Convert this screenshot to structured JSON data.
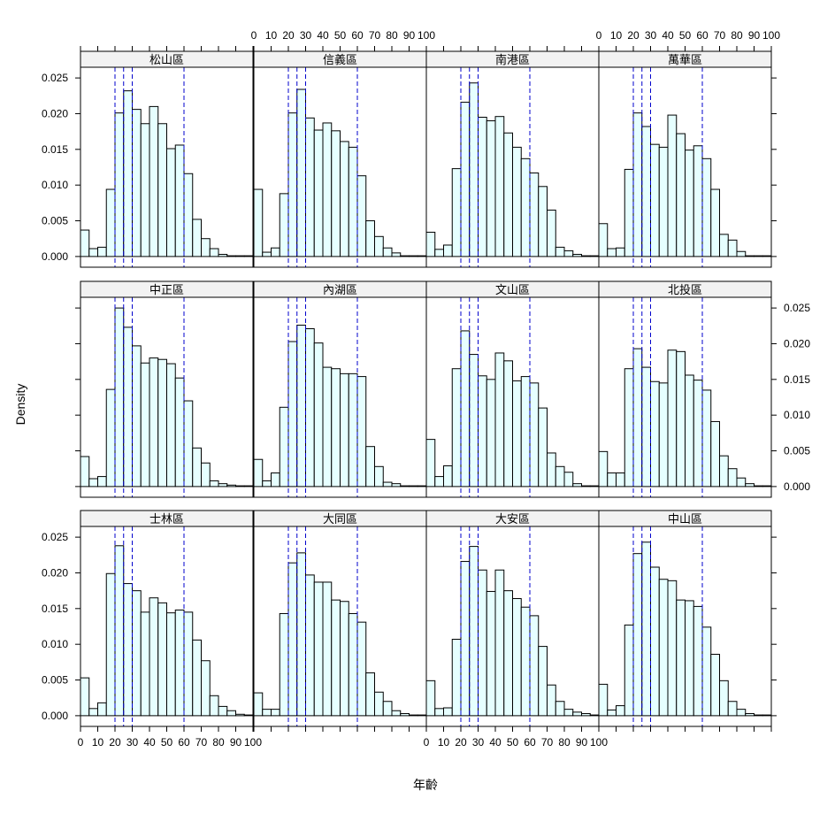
{
  "chart_data": {
    "type": "bar",
    "chart_kind": "lattice histogram",
    "xlabel": "年齡",
    "ylabel": "Density",
    "xlim": [
      0,
      100
    ],
    "ylim": [
      -0.0015,
      0.0265
    ],
    "bin_width": 5,
    "bin_starts": [
      0,
      5,
      10,
      15,
      20,
      25,
      30,
      35,
      40,
      45,
      50,
      55,
      60,
      65,
      70,
      75,
      80,
      85,
      90,
      95
    ],
    "x_ticks": [
      0,
      10,
      20,
      30,
      40,
      50,
      60,
      70,
      80,
      90,
      100
    ],
    "x_tick_labels": [
      "0",
      "10",
      "20",
      "30",
      "40",
      "50",
      "60",
      "70",
      "80",
      "90",
      "100"
    ],
    "y_ticks": [
      0,
      0.005,
      0.01,
      0.015,
      0.02,
      0.025
    ],
    "y_tick_labels": [
      "0.000",
      "0.005",
      "0.010",
      "0.015",
      "0.020",
      "0.025"
    ],
    "reference_lines": [
      20,
      25,
      30,
      60
    ],
    "bar_fill": "#e6ffff",
    "reference_line_color": "#0000cc",
    "strip_fill": "#f2f2f2",
    "panels": [
      {
        "name": "松山區",
        "values": [
          0.0037,
          0.0011,
          0.0013,
          0.0094,
          0.0201,
          0.0232,
          0.0206,
          0.0186,
          0.021,
          0.0186,
          0.0151,
          0.0156,
          0.0116,
          0.0052,
          0.0025,
          0.0011,
          0.0003,
          0.0001,
          0.0001,
          0.0001
        ]
      },
      {
        "name": "信義區",
        "values": [
          0.0094,
          0.0006,
          0.0012,
          0.0088,
          0.0201,
          0.0234,
          0.0194,
          0.0177,
          0.0187,
          0.0176,
          0.0161,
          0.0153,
          0.0113,
          0.005,
          0.0028,
          0.0012,
          0.0005,
          0.0001,
          0.0001,
          0.0001
        ]
      },
      {
        "name": "南港區",
        "values": [
          0.0034,
          0.001,
          0.0016,
          0.0123,
          0.0216,
          0.0243,
          0.0195,
          0.019,
          0.0196,
          0.0173,
          0.0153,
          0.0137,
          0.0117,
          0.0098,
          0.0065,
          0.0013,
          0.0008,
          0.0003,
          0.0001,
          0.0001
        ]
      },
      {
        "name": "萬華區",
        "values": [
          0.0046,
          0.0011,
          0.0012,
          0.0122,
          0.0201,
          0.0182,
          0.0157,
          0.0153,
          0.0198,
          0.0172,
          0.0149,
          0.0155,
          0.0137,
          0.0094,
          0.0031,
          0.0023,
          0.0007,
          0.0001,
          0.0001,
          0.0001
        ]
      },
      {
        "name": "中正區",
        "values": [
          0.0042,
          0.0011,
          0.0014,
          0.0136,
          0.025,
          0.0223,
          0.0197,
          0.0173,
          0.018,
          0.0178,
          0.0172,
          0.0152,
          0.012,
          0.0054,
          0.0033,
          0.0008,
          0.0004,
          0.0002,
          0.0001,
          0.0001
        ]
      },
      {
        "name": "內湖區",
        "values": [
          0.0038,
          0.0008,
          0.0019,
          0.0111,
          0.0203,
          0.0226,
          0.0221,
          0.0201,
          0.0167,
          0.0165,
          0.0158,
          0.0158,
          0.0154,
          0.0056,
          0.0028,
          0.0006,
          0.0004,
          0.0001,
          0.0001,
          0.0001
        ]
      },
      {
        "name": "文山區",
        "values": [
          0.0066,
          0.0014,
          0.0029,
          0.0165,
          0.0218,
          0.0185,
          0.0155,
          0.015,
          0.0187,
          0.0176,
          0.0148,
          0.0154,
          0.0145,
          0.011,
          0.0047,
          0.0028,
          0.002,
          0.0004,
          0.0001,
          0.0001
        ]
      },
      {
        "name": "北投區",
        "values": [
          0.0049,
          0.0019,
          0.0019,
          0.0165,
          0.0193,
          0.0167,
          0.0147,
          0.0145,
          0.0191,
          0.0189,
          0.0156,
          0.0149,
          0.0135,
          0.0091,
          0.0043,
          0.0025,
          0.0012,
          0.0004,
          0.0001,
          0.0001
        ]
      },
      {
        "name": "士林區",
        "values": [
          0.0053,
          0.001,
          0.0018,
          0.0199,
          0.0238,
          0.0185,
          0.0175,
          0.0145,
          0.0165,
          0.0158,
          0.0144,
          0.0148,
          0.0145,
          0.0106,
          0.0077,
          0.0028,
          0.0013,
          0.0007,
          0.0002,
          0.0001
        ]
      },
      {
        "name": "大同區",
        "values": [
          0.0032,
          0.0009,
          0.0009,
          0.0143,
          0.0214,
          0.0228,
          0.0197,
          0.0187,
          0.0187,
          0.0162,
          0.016,
          0.0143,
          0.0131,
          0.006,
          0.0033,
          0.002,
          0.0007,
          0.0003,
          0.0001,
          0.0001
        ]
      },
      {
        "name": "大安區",
        "values": [
          0.0049,
          0.001,
          0.0011,
          0.0107,
          0.0216,
          0.0237,
          0.0204,
          0.0174,
          0.0204,
          0.0175,
          0.0164,
          0.0152,
          0.014,
          0.0097,
          0.0043,
          0.002,
          0.0009,
          0.0005,
          0.0003,
          0.0001
        ]
      },
      {
        "name": "中山區",
        "values": [
          0.0044,
          0.0008,
          0.0014,
          0.0127,
          0.0227,
          0.0243,
          0.0208,
          0.0191,
          0.0189,
          0.0162,
          0.0161,
          0.0153,
          0.0124,
          0.0086,
          0.0049,
          0.002,
          0.0009,
          0.0003,
          0.0001,
          0.0001
        ]
      }
    ]
  }
}
